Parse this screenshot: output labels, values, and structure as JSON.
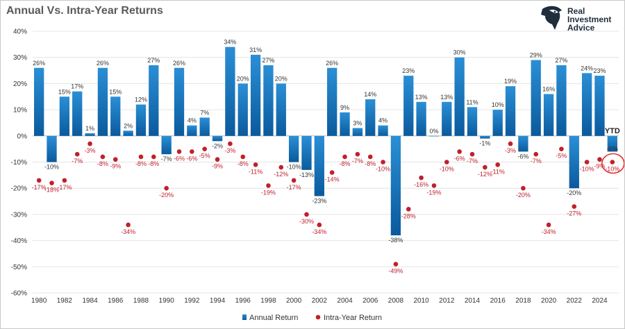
{
  "header": {
    "title": "Annual Vs. Intra-Year Returns",
    "logo_lines": [
      "Real",
      "Investment",
      "Advice"
    ]
  },
  "colors": {
    "bar_top": "#2b8fd6",
    "bar_bottom": "#0a5a9c",
    "dot": "#c0202a",
    "highlight_ring": "#e03030"
  },
  "chart_data": {
    "type": "bar",
    "title": "Annual Vs. Intra-Year Returns",
    "xlabel": "",
    "ylabel": "",
    "ylim": [
      -60,
      40
    ],
    "yticks": [
      40,
      30,
      20,
      10,
      0,
      -10,
      -20,
      -30,
      -40,
      -50,
      -60
    ],
    "ytick_labels": [
      "40%",
      "30%",
      "20%",
      "10%",
      "0%",
      "-10%",
      "-20%",
      "-30%",
      "-40%",
      "-50%",
      "-60%"
    ],
    "x": [
      1980,
      1981,
      1982,
      1983,
      1984,
      1985,
      1986,
      1987,
      1988,
      1989,
      1990,
      1991,
      1992,
      1993,
      1994,
      1995,
      1996,
      1997,
      1998,
      1999,
      2000,
      2001,
      2002,
      2003,
      2004,
      2005,
      2006,
      2007,
      2008,
      2009,
      2010,
      2011,
      2012,
      2013,
      2014,
      2015,
      2016,
      2017,
      2018,
      2019,
      2020,
      2021,
      2022,
      2023,
      2024,
      2025
    ],
    "xtick_labels": [
      "1980",
      "1982",
      "1984",
      "1986",
      "1988",
      "1990",
      "1992",
      "1994",
      "1996",
      "1998",
      "2000",
      "2002",
      "2004",
      "2006",
      "2008",
      "2010",
      "2012",
      "2014",
      "2016",
      "2018",
      "2020",
      "2022",
      "2024"
    ],
    "legend_position": "bottom",
    "series": [
      {
        "name": "Annual Return",
        "kind": "bar",
        "values": [
          26,
          -10,
          15,
          17,
          1,
          26,
          15,
          2,
          12,
          27,
          -7,
          26,
          4,
          7,
          -2,
          34,
          20,
          31,
          27,
          20,
          -10,
          -13,
          -23,
          26,
          9,
          3,
          14,
          4,
          -38,
          23,
          13,
          0,
          13,
          30,
          11,
          -1,
          10,
          19,
          -6,
          29,
          16,
          27,
          -20,
          24,
          23,
          -6
        ],
        "labels": [
          "26%",
          "-10%",
          "15%",
          "17%",
          "1%",
          "26%",
          "15%",
          "2%",
          "12%",
          "27%",
          "-7%",
          "26%",
          "4%",
          "7%",
          "-2%",
          "34%",
          "20%",
          "31%",
          "27%",
          "20%",
          "-10%",
          "-13%",
          "-23%",
          "26%",
          "9%",
          "3%",
          "14%",
          "4%",
          "-38%",
          "23%",
          "13%",
          "0%",
          "13%",
          "30%",
          "11%",
          "-1%",
          "10%",
          "19%",
          "-6%",
          "29%",
          "16%",
          "27%",
          "-20%",
          "24%",
          "23%",
          "-6%"
        ]
      },
      {
        "name": "Intra-Year Return",
        "kind": "scatter",
        "values": [
          -17,
          -18,
          -17,
          -7,
          -3,
          -8,
          -9,
          -34,
          -8,
          -8,
          -20,
          -6,
          -6,
          -5,
          -9,
          -3,
          -8,
          -11,
          -19,
          -12,
          -17,
          -30,
          -34,
          -14,
          -8,
          -7,
          -8,
          -10,
          -49,
          -28,
          -16,
          -19,
          -10,
          -6,
          -7,
          -12,
          -11,
          -3,
          -20,
          -7,
          -34,
          -5,
          -27,
          -10,
          -9,
          -10
        ],
        "labels": [
          "-17%",
          "-18%",
          "-17%",
          "-7%",
          "-3%",
          "-8%",
          "-9%",
          "-34%",
          "-8%",
          "-8%",
          "-20%",
          "-6%",
          "-6%",
          "-5%",
          "-9%",
          "-3%",
          "-8%",
          "-11%",
          "-19%",
          "-12%",
          "-17%",
          "-30%",
          "-34%",
          "-14%",
          "-8%",
          "-7%",
          "-8%",
          "-10%",
          "-49%",
          "-28%",
          "-16%",
          "-19%",
          "-10%",
          "-6%",
          "-7%",
          "-12%",
          "-11%",
          "-3%",
          "-20%",
          "-7%",
          "-34%",
          "-5%",
          "-27%",
          "-10%",
          "-9%",
          "-10%"
        ]
      }
    ],
    "annotations": [
      {
        "text": "YTD",
        "year": 2025
      },
      {
        "type": "circle",
        "year": 2025,
        "target": "Intra-Year Return"
      }
    ]
  }
}
